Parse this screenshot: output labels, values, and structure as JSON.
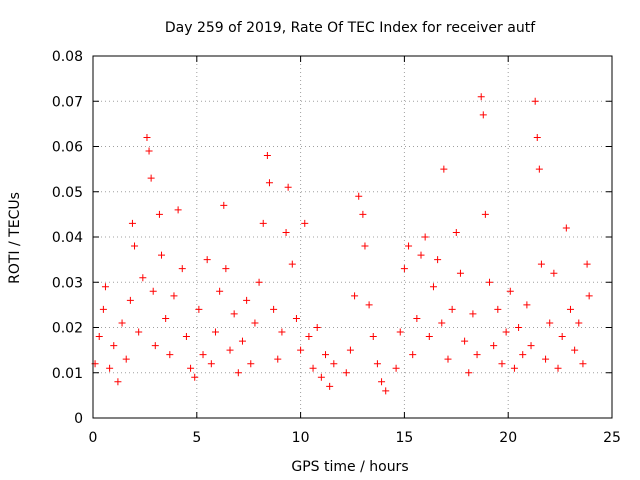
{
  "chart_data": {
    "type": "scatter",
    "title": "Day 259 of 2019, Rate Of TEC Index for receiver autf",
    "xlabel": "GPS time / hours",
    "ylabel": "ROTI / TECUs",
    "xlim": [
      0,
      25
    ],
    "ylim": [
      0,
      0.08
    ],
    "xticks": [
      0,
      5,
      10,
      15,
      20,
      25
    ],
    "xtick_labels": [
      "0",
      "5",
      "10",
      "15",
      "20",
      "25"
    ],
    "yticks": [
      0,
      0.01,
      0.02,
      0.03,
      0.04,
      0.05,
      0.06,
      0.07,
      0.08
    ],
    "ytick_labels": [
      "0",
      "0.01",
      "0.02",
      "0.03",
      "0.04",
      "0.05",
      "0.06",
      "0.07",
      "0.08"
    ],
    "grid": true,
    "marker": "+",
    "series_color": "#ff0000",
    "series": [
      {
        "name": "ROTI",
        "points": [
          [
            0.1,
            0.012
          ],
          [
            0.3,
            0.018
          ],
          [
            0.5,
            0.024
          ],
          [
            0.6,
            0.029
          ],
          [
            0.8,
            0.011
          ],
          [
            1.0,
            0.016
          ],
          [
            1.2,
            0.008
          ],
          [
            1.4,
            0.021
          ],
          [
            1.6,
            0.013
          ],
          [
            1.8,
            0.026
          ],
          [
            1.9,
            0.043
          ],
          [
            2.0,
            0.038
          ],
          [
            2.2,
            0.019
          ],
          [
            2.4,
            0.031
          ],
          [
            2.6,
            0.062
          ],
          [
            2.7,
            0.059
          ],
          [
            2.8,
            0.053
          ],
          [
            2.9,
            0.028
          ],
          [
            3.0,
            0.016
          ],
          [
            3.2,
            0.045
          ],
          [
            3.3,
            0.036
          ],
          [
            3.5,
            0.022
          ],
          [
            3.7,
            0.014
          ],
          [
            3.9,
            0.027
          ],
          [
            4.1,
            0.046
          ],
          [
            4.3,
            0.033
          ],
          [
            4.5,
            0.018
          ],
          [
            4.7,
            0.011
          ],
          [
            4.9,
            0.009
          ],
          [
            5.1,
            0.024
          ],
          [
            5.3,
            0.014
          ],
          [
            5.5,
            0.035
          ],
          [
            5.7,
            0.012
          ],
          [
            5.9,
            0.019
          ],
          [
            6.1,
            0.028
          ],
          [
            6.3,
            0.047
          ],
          [
            6.4,
            0.033
          ],
          [
            6.6,
            0.015
          ],
          [
            6.8,
            0.023
          ],
          [
            7.0,
            0.01
          ],
          [
            7.2,
            0.017
          ],
          [
            7.4,
            0.026
          ],
          [
            7.6,
            0.012
          ],
          [
            7.8,
            0.021
          ],
          [
            8.0,
            0.03
          ],
          [
            8.2,
            0.043
          ],
          [
            8.4,
            0.058
          ],
          [
            8.5,
            0.052
          ],
          [
            8.7,
            0.024
          ],
          [
            8.9,
            0.013
          ],
          [
            9.1,
            0.019
          ],
          [
            9.3,
            0.041
          ],
          [
            9.4,
            0.051
          ],
          [
            9.6,
            0.034
          ],
          [
            9.8,
            0.022
          ],
          [
            10.0,
            0.015
          ],
          [
            10.2,
            0.043
          ],
          [
            10.4,
            0.018
          ],
          [
            10.6,
            0.011
          ],
          [
            10.8,
            0.02
          ],
          [
            11.0,
            0.009
          ],
          [
            11.2,
            0.014
          ],
          [
            11.4,
            0.007
          ],
          [
            11.6,
            0.012
          ],
          [
            12.2,
            0.01
          ],
          [
            12.4,
            0.015
          ],
          [
            12.6,
            0.027
          ],
          [
            12.8,
            0.049
          ],
          [
            13.0,
            0.045
          ],
          [
            13.1,
            0.038
          ],
          [
            13.3,
            0.025
          ],
          [
            13.5,
            0.018
          ],
          [
            13.7,
            0.012
          ],
          [
            13.9,
            0.008
          ],
          [
            14.1,
            0.006
          ],
          [
            14.6,
            0.011
          ],
          [
            14.8,
            0.019
          ],
          [
            15.0,
            0.033
          ],
          [
            15.2,
            0.038
          ],
          [
            15.4,
            0.014
          ],
          [
            15.6,
            0.022
          ],
          [
            15.8,
            0.036
          ],
          [
            16.0,
            0.04
          ],
          [
            16.2,
            0.018
          ],
          [
            16.4,
            0.029
          ],
          [
            16.6,
            0.035
          ],
          [
            16.8,
            0.021
          ],
          [
            16.9,
            0.055
          ],
          [
            17.1,
            0.013
          ],
          [
            17.3,
            0.024
          ],
          [
            17.5,
            0.041
          ],
          [
            17.7,
            0.032
          ],
          [
            17.9,
            0.017
          ],
          [
            18.1,
            0.01
          ],
          [
            18.3,
            0.023
          ],
          [
            18.5,
            0.014
          ],
          [
            18.7,
            0.071
          ],
          [
            18.8,
            0.067
          ],
          [
            18.9,
            0.045
          ],
          [
            19.1,
            0.03
          ],
          [
            19.3,
            0.016
          ],
          [
            19.5,
            0.024
          ],
          [
            19.7,
            0.012
          ],
          [
            19.9,
            0.019
          ],
          [
            20.1,
            0.028
          ],
          [
            20.3,
            0.011
          ],
          [
            20.5,
            0.02
          ],
          [
            20.7,
            0.014
          ],
          [
            20.9,
            0.025
          ],
          [
            21.1,
            0.016
          ],
          [
            21.3,
            0.07
          ],
          [
            21.4,
            0.062
          ],
          [
            21.5,
            0.055
          ],
          [
            21.6,
            0.034
          ],
          [
            21.8,
            0.013
          ],
          [
            22.0,
            0.021
          ],
          [
            22.2,
            0.032
          ],
          [
            22.4,
            0.011
          ],
          [
            22.6,
            0.018
          ],
          [
            22.8,
            0.042
          ],
          [
            23.0,
            0.024
          ],
          [
            23.2,
            0.015
          ],
          [
            23.4,
            0.021
          ],
          [
            23.6,
            0.012
          ],
          [
            23.8,
            0.034
          ],
          [
            23.9,
            0.027
          ]
        ]
      }
    ]
  }
}
